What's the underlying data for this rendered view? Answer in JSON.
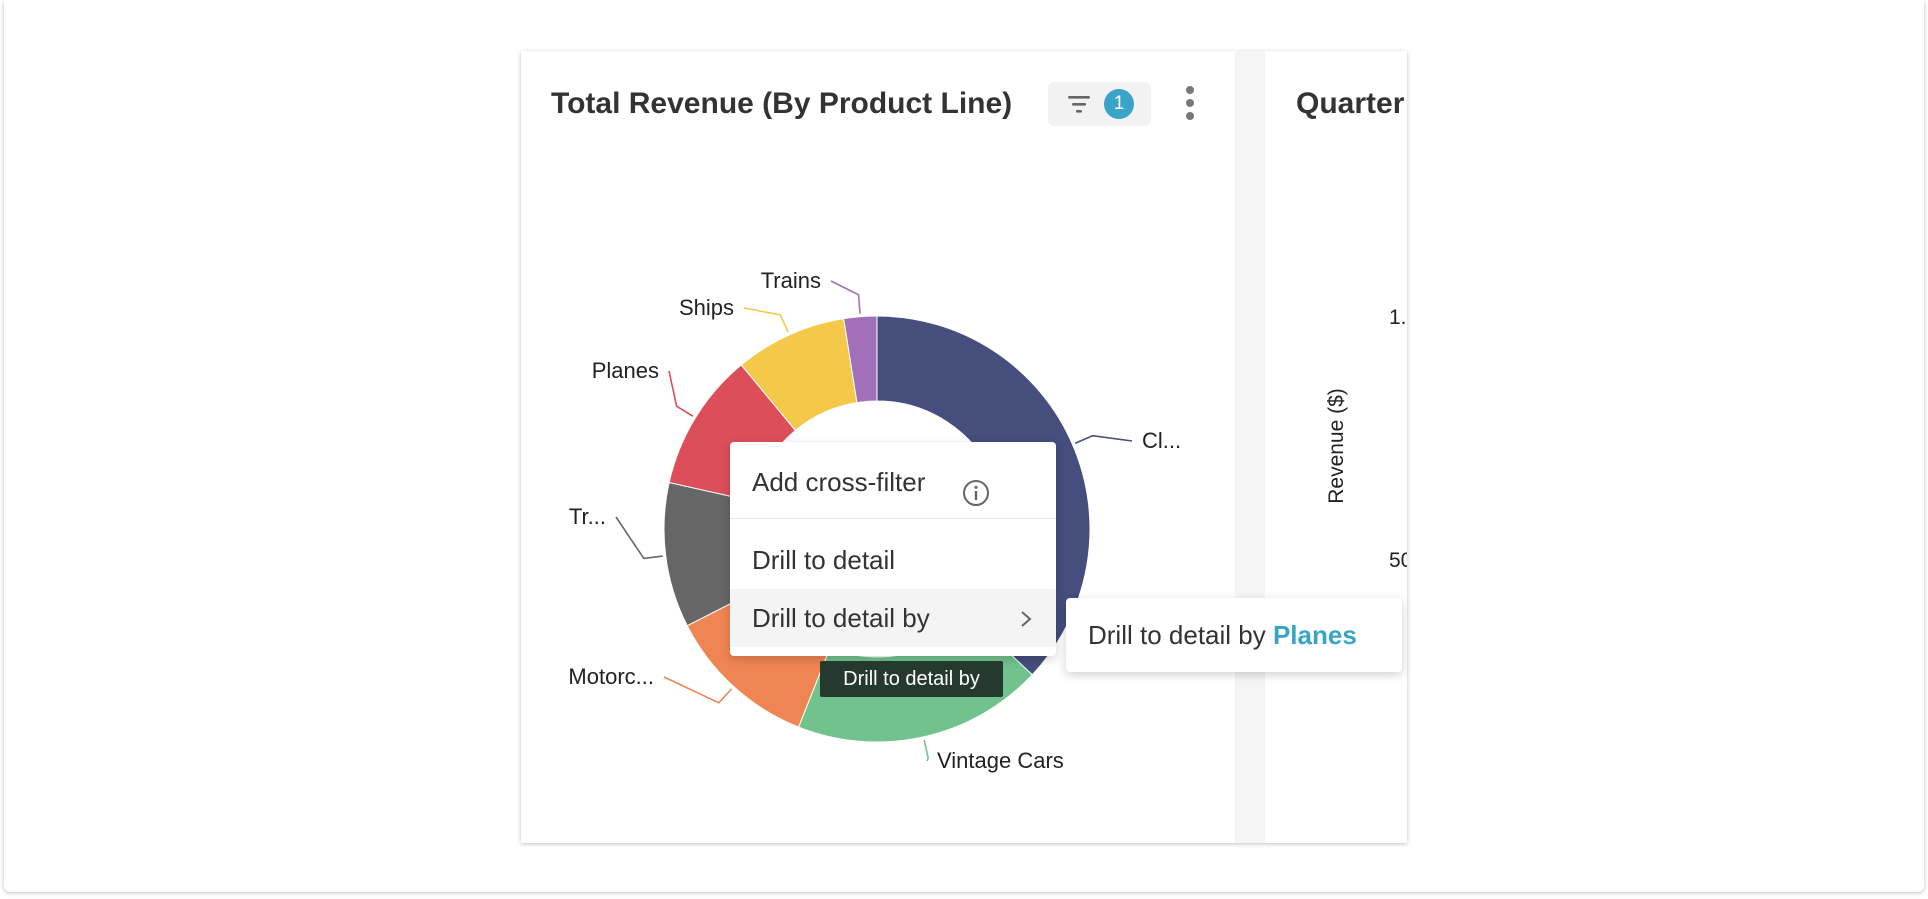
{
  "left_card": {
    "title": "Total Revenue (By Product Line)",
    "filter_count": "1"
  },
  "right_card": {
    "title_partial": "Quarter",
    "y_axis_label": "Revenue ($)",
    "ticks": [
      "1.",
      "50"
    ]
  },
  "chart_data": {
    "type": "pie",
    "variant": "donut",
    "title": "Total Revenue (By Product Line)",
    "slices": [
      {
        "label": "Cl...",
        "value": 37.0,
        "color": "#454e7c"
      },
      {
        "label": "Vintage Cars",
        "value": 19.0,
        "color": "#72c28e"
      },
      {
        "label": "Motorc...",
        "value": 11.5,
        "color": "#ef8552"
      },
      {
        "label": "Tr...",
        "value": 11.0,
        "color": "#666666"
      },
      {
        "label": "Planes",
        "value": 10.5,
        "color": "#db4e5a"
      },
      {
        "label": "Ships",
        "value": 8.5,
        "color": "#f4c94a"
      },
      {
        "label": "Trains",
        "value": 2.5,
        "color": "#a26fbb"
      }
    ]
  },
  "context_menu": {
    "add_cross_filter": "Add cross-filter",
    "drill_to_detail": "Drill to detail",
    "drill_to_detail_by": "Drill to detail by"
  },
  "submenu": {
    "prefix": "Drill to detail by",
    "value": "Planes"
  },
  "tooltip": "Drill to detail by",
  "colors": {
    "accent": "#3aa3c9",
    "tooltip_bg": "#26392f"
  }
}
